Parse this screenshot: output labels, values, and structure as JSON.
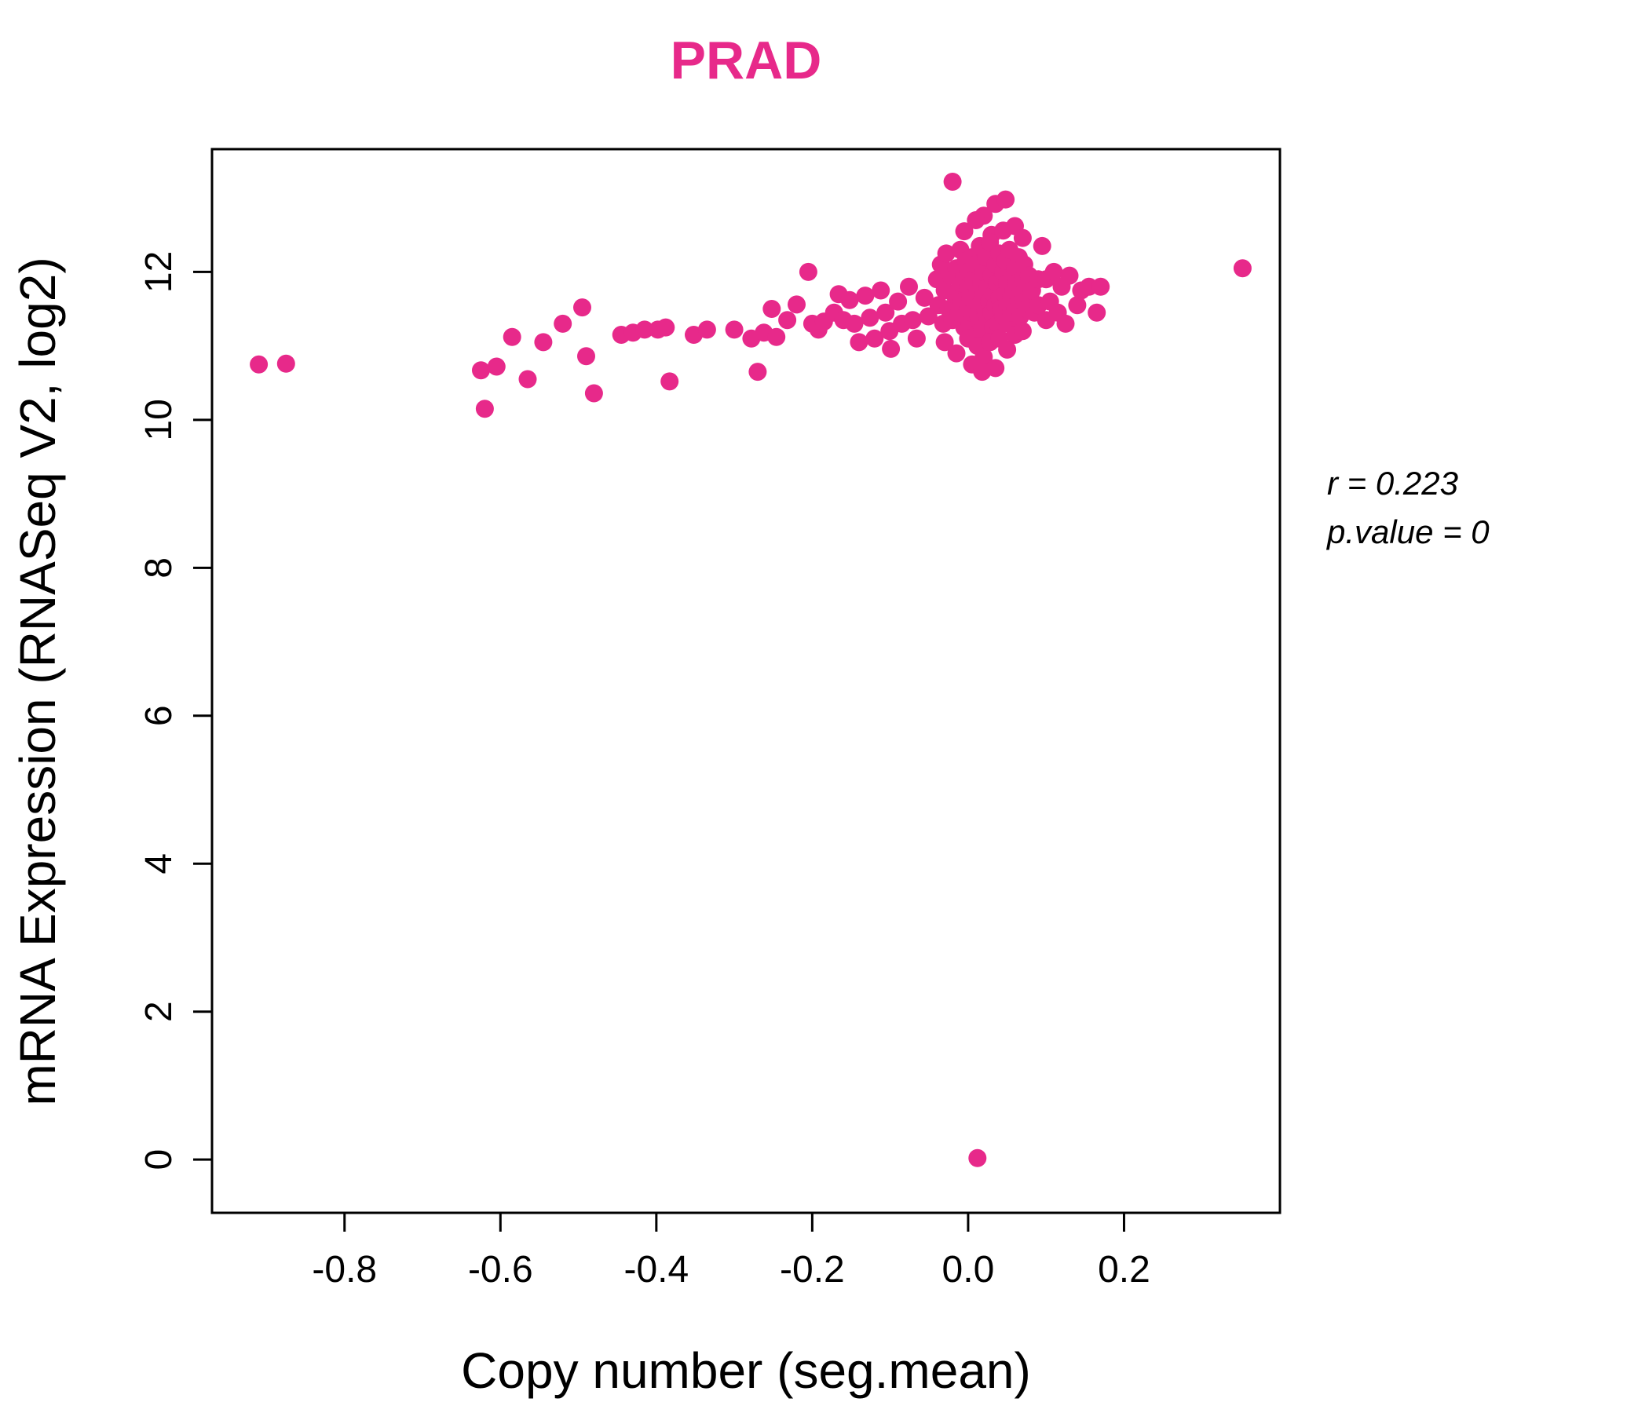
{
  "title": "PRAD",
  "title_color": "#E7298A",
  "annotation": {
    "line1": "r = 0.223",
    "line2": "p.value = 0"
  },
  "chart_data": {
    "type": "scatter",
    "title": "PRAD",
    "xlabel": "Copy number (seg.mean)",
    "ylabel": "mRNA Expression (RNASeq V2, log2)",
    "xlim": [
      -0.97,
      0.4
    ],
    "ylim": [
      -0.72,
      13.66
    ],
    "x_ticks": [
      -0.8,
      -0.6,
      -0.4,
      -0.2,
      0.0,
      0.2
    ],
    "x_tick_labels": [
      "-0.8",
      "-0.6",
      "-0.4",
      "-0.2",
      "0.0",
      "0.2"
    ],
    "y_ticks": [
      0,
      2,
      4,
      6,
      8,
      10,
      12
    ],
    "y_tick_labels": [
      "0",
      "2",
      "4",
      "6",
      "8",
      "10",
      "12"
    ],
    "grid": false,
    "legend": "none",
    "point_color": "#E7298A",
    "annotations": [
      "r = 0.223",
      "p.value = 0"
    ],
    "points": [
      [
        -0.91,
        10.75
      ],
      [
        -0.875,
        10.76
      ],
      [
        -0.625,
        10.67
      ],
      [
        -0.62,
        10.15
      ],
      [
        -0.605,
        10.72
      ],
      [
        -0.585,
        11.12
      ],
      [
        -0.565,
        10.55
      ],
      [
        -0.545,
        11.05
      ],
      [
        -0.52,
        11.3
      ],
      [
        -0.495,
        11.52
      ],
      [
        -0.49,
        10.86
      ],
      [
        -0.48,
        10.36
      ],
      [
        -0.445,
        11.15
      ],
      [
        -0.43,
        11.18
      ],
      [
        -0.415,
        11.22
      ],
      [
        -0.398,
        11.22
      ],
      [
        -0.388,
        11.25
      ],
      [
        -0.383,
        10.52
      ],
      [
        -0.352,
        11.15
      ],
      [
        -0.335,
        11.22
      ],
      [
        -0.3,
        11.22
      ],
      [
        -0.278,
        11.1
      ],
      [
        -0.27,
        10.65
      ],
      [
        -0.262,
        11.18
      ],
      [
        -0.252,
        11.5
      ],
      [
        -0.246,
        11.12
      ],
      [
        -0.232,
        11.35
      ],
      [
        -0.22,
        11.56
      ],
      [
        -0.205,
        12.0
      ],
      [
        -0.2,
        11.3
      ],
      [
        -0.192,
        11.22
      ],
      [
        -0.185,
        11.33
      ],
      [
        -0.172,
        11.45
      ],
      [
        -0.166,
        11.7
      ],
      [
        -0.16,
        11.35
      ],
      [
        -0.152,
        11.62
      ],
      [
        -0.146,
        11.3
      ],
      [
        -0.14,
        11.05
      ],
      [
        -0.132,
        11.68
      ],
      [
        -0.126,
        11.38
      ],
      [
        -0.12,
        11.1
      ],
      [
        -0.112,
        11.75
      ],
      [
        -0.106,
        11.45
      ],
      [
        -0.101,
        11.2
      ],
      [
        -0.099,
        10.96
      ],
      [
        -0.09,
        11.6
      ],
      [
        -0.085,
        11.3
      ],
      [
        -0.076,
        11.8
      ],
      [
        -0.071,
        11.35
      ],
      [
        -0.066,
        11.1
      ],
      [
        -0.056,
        11.65
      ],
      [
        -0.051,
        11.4
      ],
      [
        -0.02,
        13.22
      ],
      [
        0.035,
        12.92
      ],
      [
        0.048,
        12.98
      ],
      [
        0.02,
        12.76
      ],
      [
        0.01,
        12.7
      ],
      [
        0.06,
        12.62
      ],
      [
        -0.005,
        12.55
      ],
      [
        0.03,
        12.5
      ],
      [
        0.045,
        12.56
      ],
      [
        0.07,
        12.46
      ],
      [
        -0.04,
        11.9
      ],
      [
        -0.038,
        11.55
      ],
      [
        -0.035,
        12.1
      ],
      [
        -0.032,
        11.3
      ],
      [
        -0.03,
        11.75
      ],
      [
        -0.028,
        12.25
      ],
      [
        -0.025,
        11.5
      ],
      [
        -0.022,
        11.95
      ],
      [
        -0.02,
        11.35
      ],
      [
        -0.018,
        11.7
      ],
      [
        -0.015,
        12.05
      ],
      [
        -0.012,
        11.45
      ],
      [
        -0.01,
        11.85
      ],
      [
        -0.01,
        12.3
      ],
      [
        -0.008,
        11.6
      ],
      [
        -0.005,
        11.25
      ],
      [
        -0.005,
        11.95
      ],
      [
        -0.003,
        12.15
      ],
      [
        0.0,
        11.5
      ],
      [
        0.0,
        11.8
      ],
      [
        0.0,
        12.0
      ],
      [
        0.002,
        11.3
      ],
      [
        0.003,
        11.65
      ],
      [
        0.005,
        12.2
      ],
      [
        0.005,
        11.45
      ],
      [
        0.007,
        11.9
      ],
      [
        0.008,
        11.15
      ],
      [
        0.01,
        11.6
      ],
      [
        0.01,
        12.1
      ],
      [
        0.012,
        11.75
      ],
      [
        0.013,
        11.4
      ],
      [
        0.015,
        12.35
      ],
      [
        0.015,
        11.55
      ],
      [
        0.017,
        11.85
      ],
      [
        0.018,
        11.2
      ],
      [
        0.02,
        11.7
      ],
      [
        0.02,
        12.0
      ],
      [
        0.022,
        11.5
      ],
      [
        0.023,
        12.2
      ],
      [
        0.025,
        11.35
      ],
      [
        0.025,
        11.8
      ],
      [
        0.027,
        11.6
      ],
      [
        0.028,
        12.4
      ],
      [
        0.03,
        11.45
      ],
      [
        0.03,
        11.95
      ],
      [
        0.032,
        11.25
      ],
      [
        0.033,
        11.7
      ],
      [
        0.035,
        12.1
      ],
      [
        0.035,
        11.55
      ],
      [
        0.037,
        11.85
      ],
      [
        0.038,
        11.3
      ],
      [
        0.04,
        11.65
      ],
      [
        0.04,
        12.25
      ],
      [
        0.042,
        11.5
      ],
      [
        0.043,
        11.9
      ],
      [
        0.045,
        11.4
      ],
      [
        0.045,
        12.0
      ],
      [
        0.047,
        11.7
      ],
      [
        0.048,
        12.15
      ],
      [
        0.05,
        11.55
      ],
      [
        0.05,
        11.85
      ],
      [
        0.052,
        11.3
      ],
      [
        0.053,
        12.3
      ],
      [
        0.055,
        11.65
      ],
      [
        0.055,
        11.45
      ],
      [
        0.057,
        11.95
      ],
      [
        0.058,
        11.75
      ],
      [
        0.06,
        11.5
      ],
      [
        0.06,
        12.05
      ],
      [
        0.062,
        11.85
      ],
      [
        0.065,
        11.6
      ],
      [
        0.065,
        12.2
      ],
      [
        0.067,
        11.4
      ],
      [
        0.07,
        11.9
      ],
      [
        0.07,
        11.65
      ],
      [
        0.072,
        12.1
      ],
      [
        0.075,
        11.5
      ],
      [
        0.075,
        11.8
      ],
      [
        0.078,
        11.95
      ],
      [
        0.08,
        11.6
      ],
      [
        0.082,
        11.75
      ],
      [
        0.085,
        11.45
      ],
      [
        0.09,
        11.9
      ],
      [
        0.09,
        11.55
      ],
      [
        -0.03,
        11.05
      ],
      [
        -0.015,
        10.9
      ],
      [
        0.0,
        11.1
      ],
      [
        0.005,
        10.75
      ],
      [
        0.012,
        11.0
      ],
      [
        0.02,
        10.85
      ],
      [
        0.028,
        11.05
      ],
      [
        0.035,
        10.7
      ],
      [
        0.04,
        11.1
      ],
      [
        0.05,
        10.95
      ],
      [
        0.06,
        11.15
      ],
      [
        0.07,
        11.2
      ],
      [
        0.018,
        10.65
      ],
      [
        0.095,
        12.35
      ],
      [
        0.1,
        11.9
      ],
      [
        0.1,
        11.35
      ],
      [
        0.105,
        11.6
      ],
      [
        0.11,
        12.0
      ],
      [
        0.115,
        11.45
      ],
      [
        0.12,
        11.8
      ],
      [
        0.125,
        11.3
      ],
      [
        0.13,
        11.95
      ],
      [
        0.14,
        11.55
      ],
      [
        0.145,
        11.75
      ],
      [
        0.155,
        11.8
      ],
      [
        0.165,
        11.45
      ],
      [
        0.17,
        11.8
      ],
      [
        0.352,
        12.05
      ],
      [
        0.012,
        0.02
      ]
    ]
  }
}
